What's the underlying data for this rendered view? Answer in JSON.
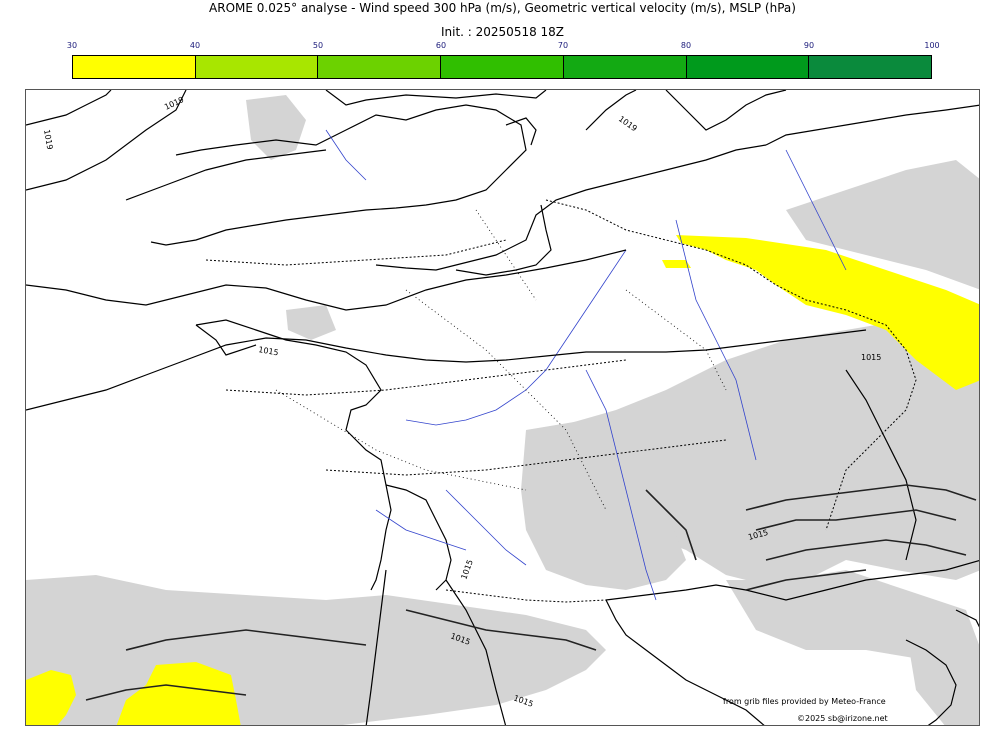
{
  "header": {
    "title": "AROME 0.025° analyse - Wind speed 300 hPa (m/s), Geometric vertical velocity (m/s), MSLP (hPa)",
    "init": "Init. : 20250518 18Z"
  },
  "colorbar": {
    "ticks": [
      "30",
      "40",
      "50",
      "60",
      "70",
      "80",
      "90",
      "100"
    ],
    "colors": [
      "#ffff00",
      "#a8e600",
      "#6cd200",
      "#30bf00",
      "#13aa13",
      "#009a1c",
      "#0a8a3c",
      "#0a7a4a"
    ]
  },
  "map": {
    "isobar_labels": [
      "1019",
      "1019",
      "1019",
      "1015",
      "1015",
      "1015",
      "1015",
      "1015",
      "1015"
    ],
    "colors": {
      "land_outline": "#000000",
      "rivers": "#3344cc",
      "vertical_velocity": "#d2d2d2",
      "jet": "#ffff00"
    }
  },
  "credits": {
    "source": "from grib files provided by Meteo-France",
    "copyright": "©2025 sb@irizone.net"
  }
}
